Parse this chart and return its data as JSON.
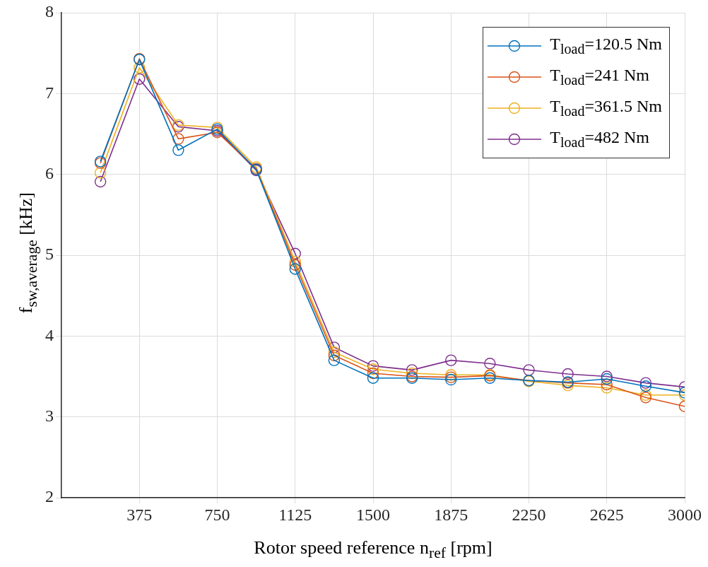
{
  "chart_data": {
    "type": "line",
    "xlabel": "Rotor speed reference n$_{ref}$ [rpm]",
    "ylabel": "f$_{sw,average}$ [kHz]",
    "x": [
      187.5,
      375,
      562.5,
      750,
      937.5,
      1125,
      1312.5,
      1500,
      1687.5,
      1875,
      2062.5,
      2250,
      2437.5,
      2625,
      2812.5,
      3000
    ],
    "series": [
      {
        "name": "T$_{load}$=120.5 Nm",
        "color": "#0072bd",
        "values": [
          6.16,
          7.42,
          6.3,
          6.56,
          6.06,
          4.83,
          3.7,
          3.48,
          3.48,
          3.46,
          3.48,
          3.45,
          3.43,
          3.47,
          3.38,
          3.3
        ]
      },
      {
        "name": "T$_{load}$=241 Nm",
        "color": "#d95319",
        "values": [
          6.14,
          7.43,
          6.44,
          6.52,
          6.07,
          4.88,
          3.76,
          3.54,
          3.5,
          3.49,
          3.51,
          3.45,
          3.42,
          3.4,
          3.24,
          3.13
        ]
      },
      {
        "name": "T$_{load}$=361.5 Nm",
        "color": "#edb120",
        "values": [
          6.02,
          7.32,
          6.61,
          6.58,
          6.09,
          4.92,
          3.8,
          3.59,
          3.54,
          3.52,
          3.52,
          3.44,
          3.39,
          3.36,
          3.27,
          3.27
        ]
      },
      {
        "name": "T$_{load}$=482 Nm",
        "color": "#7e2f8e",
        "values": [
          5.91,
          7.18,
          6.59,
          6.54,
          6.05,
          5.02,
          3.86,
          3.63,
          3.58,
          3.7,
          3.66,
          3.58,
          3.53,
          3.5,
          3.42,
          3.37
        ]
      }
    ],
    "xlim": [
      0,
      3000
    ],
    "xticks": [
      375,
      750,
      1125,
      1500,
      1875,
      2250,
      2625,
      3000
    ],
    "ylim": [
      2,
      8
    ],
    "yticks": [
      2,
      3,
      4,
      5,
      6,
      7,
      8
    ],
    "grid": true,
    "legend": "top right",
    "marker": "circle",
    "line_style": "solid"
  }
}
